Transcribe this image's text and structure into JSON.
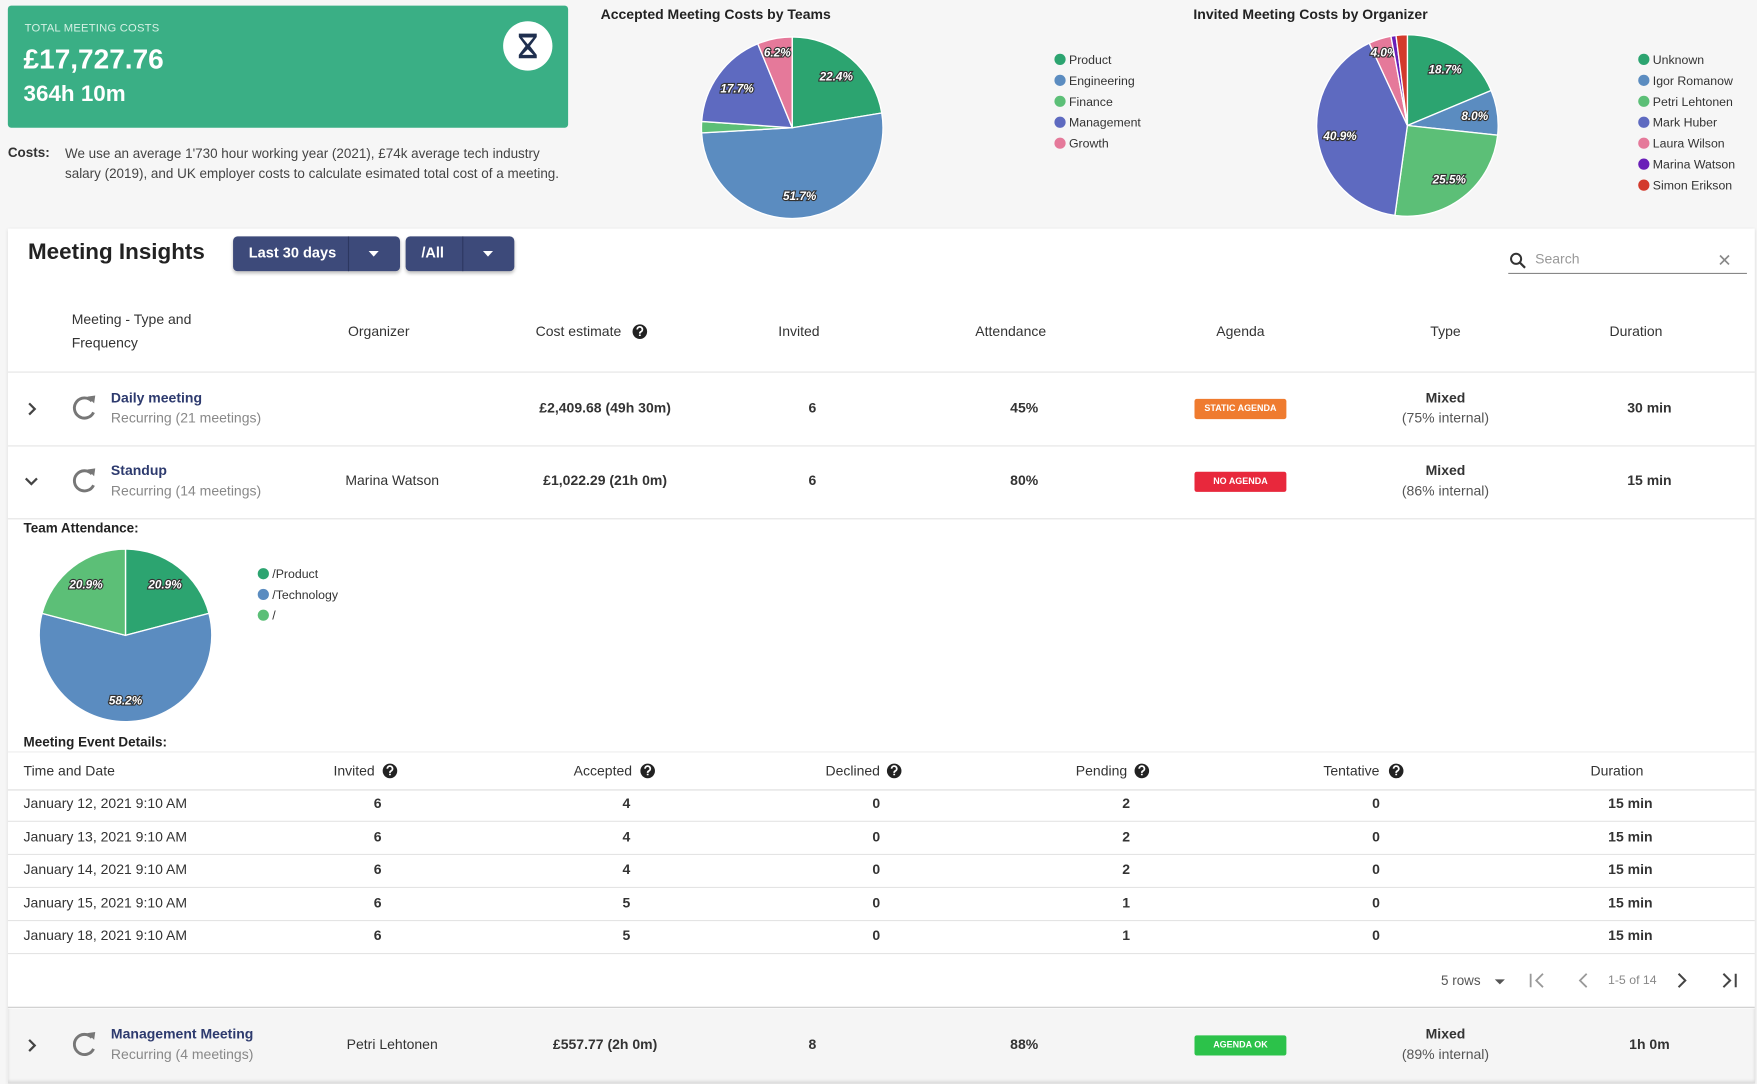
{
  "header": {
    "label": "TOTAL MEETING COSTS",
    "total": "£17,727.76",
    "hours": "364h 10m"
  },
  "costs_note": {
    "label": "Costs:",
    "text": "We use an average 1'730 hour working year (2021), £74k average tech industry salary (2019), and UK employer costs to calculate esimated total cost of a meeting."
  },
  "chart_data": [
    {
      "type": "pie",
      "title": "Accepted Meeting Costs by Teams",
      "categories": [
        "Product",
        "Engineering",
        "Finance",
        "Management",
        "Growth"
      ],
      "values": [
        22.4,
        51.7,
        2.0,
        17.7,
        6.2
      ],
      "value_labels": [
        "22.4%",
        "51.7%",
        null,
        "17.7%",
        "6.2%"
      ],
      "colors": [
        "#2ca470",
        "#5b8cc0",
        "#5cbf77",
        "#5e6ac0",
        "#e5799a"
      ]
    },
    {
      "type": "pie",
      "title": "Invited Meeting Costs by Organizer",
      "categories": [
        "Unknown",
        "Igor Romanow",
        "Petri Lehtonen",
        "Mark Huber",
        "Laura Wilson",
        "Marina Watson",
        "Simon Erikson"
      ],
      "values": [
        18.7,
        8.0,
        25.5,
        40.9,
        4.0,
        0.9,
        2.0
      ],
      "value_labels": [
        "18.7%",
        "8.0%",
        "25.5%",
        "40.9%",
        "4.0%",
        null,
        null
      ],
      "colors": [
        "#2ca470",
        "#5b8cc0",
        "#5cbf77",
        "#5e6ac0",
        "#e5799a",
        "#6a1fb8",
        "#d33a2c"
      ]
    },
    {
      "type": "pie",
      "title": "Team Attendance:",
      "categories": [
        "/Product",
        "/Technology",
        "/"
      ],
      "values": [
        20.9,
        58.2,
        20.9
      ],
      "value_labels": [
        "20.9%",
        "58.2%",
        "20.9%"
      ],
      "colors": [
        "#2ca470",
        "#5b8cc0",
        "#5cbf77"
      ]
    }
  ],
  "insights": {
    "title": "Meeting Insights",
    "filters": [
      "Last 30 days",
      "/All"
    ],
    "search_placeholder": "Search",
    "columns": [
      "Meeting - Type and Frequency",
      "Organizer",
      "Cost estimate",
      "Invited",
      "Attendance",
      "Agenda",
      "Type",
      "Duration"
    ],
    "rows": [
      {
        "name": "Daily meeting",
        "recurrence": "Recurring (21 meetings)",
        "cost": "£2,409.68 (49h 30m)",
        "invited": 6,
        "attendance": "45%",
        "agenda": "STATIC AGENDA",
        "type": "Mixed",
        "internal": "(75% internal)",
        "duration": "30 min"
      },
      {
        "name": "Standup",
        "recurrence": "Recurring (14 meetings)",
        "organizer": "Marina Watson",
        "cost": "£1,022.29 (21h 0m)",
        "invited": 6,
        "attendance": "80%",
        "agenda": "NO AGENDA",
        "type": "Mixed",
        "internal": "(86% internal)",
        "duration": "15 min"
      },
      {
        "name": "Management Meeting",
        "recurrence": "Recurring (4 meetings)",
        "organizer": "Petri Lehtonen",
        "cost": "£557.77 (2h 0m)",
        "invited": 8,
        "attendance": "88%",
        "agenda": "AGENDA OK",
        "type": "Mixed",
        "internal": "(89% internal)",
        "duration": "1h 0m"
      }
    ]
  },
  "details": {
    "title": "Meeting Event Details:",
    "columns": [
      "Time and Date",
      "Invited",
      "Accepted",
      "Declined",
      "Pending",
      "Tentative",
      "Duration"
    ],
    "rows": [
      [
        "January 12, 2021 9:10 AM",
        6,
        4,
        0,
        2,
        0,
        "15 min"
      ],
      [
        "January 13, 2021 9:10 AM",
        6,
        4,
        0,
        2,
        0,
        "15 min"
      ],
      [
        "January 14, 2021 9:10 AM",
        6,
        4,
        0,
        2,
        0,
        "15 min"
      ],
      [
        "January 15, 2021 9:10 AM",
        6,
        5,
        0,
        1,
        0,
        "15 min"
      ],
      [
        "January 18, 2021 9:10 AM",
        6,
        5,
        0,
        1,
        0,
        "15 min"
      ]
    ],
    "pagination": {
      "rows_per_page": "5 rows",
      "range": "1-5 of 14"
    }
  }
}
